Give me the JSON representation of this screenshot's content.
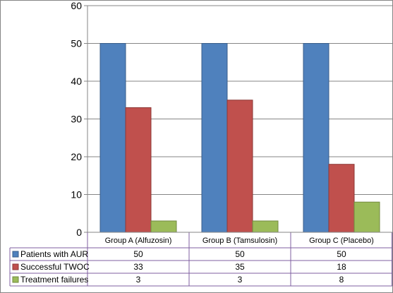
{
  "chart_data": {
    "type": "bar",
    "title": "",
    "xlabel": "",
    "ylabel": "",
    "ylim": [
      0,
      60
    ],
    "yticks": [
      0,
      10,
      20,
      30,
      40,
      50,
      60
    ],
    "grid": true,
    "legend": "data-table",
    "categories": [
      "Group A (Alfuzosin)",
      "Group B (Tamsulosin)",
      "Group C (Placebo)"
    ],
    "series": [
      {
        "name": "Patients with AUR",
        "color": "#4F81BD",
        "stroke": "#385D8A",
        "values": [
          50,
          50,
          50
        ]
      },
      {
        "name": "Successful TWOC",
        "color": "#C0504D",
        "stroke": "#8C3836",
        "values": [
          33,
          35,
          18
        ]
      },
      {
        "name": "Treatment failures",
        "color": "#9BBB59",
        "stroke": "#71893F",
        "values": [
          3,
          3,
          8
        ]
      }
    ],
    "table_border_color": "#7F5FA0"
  }
}
